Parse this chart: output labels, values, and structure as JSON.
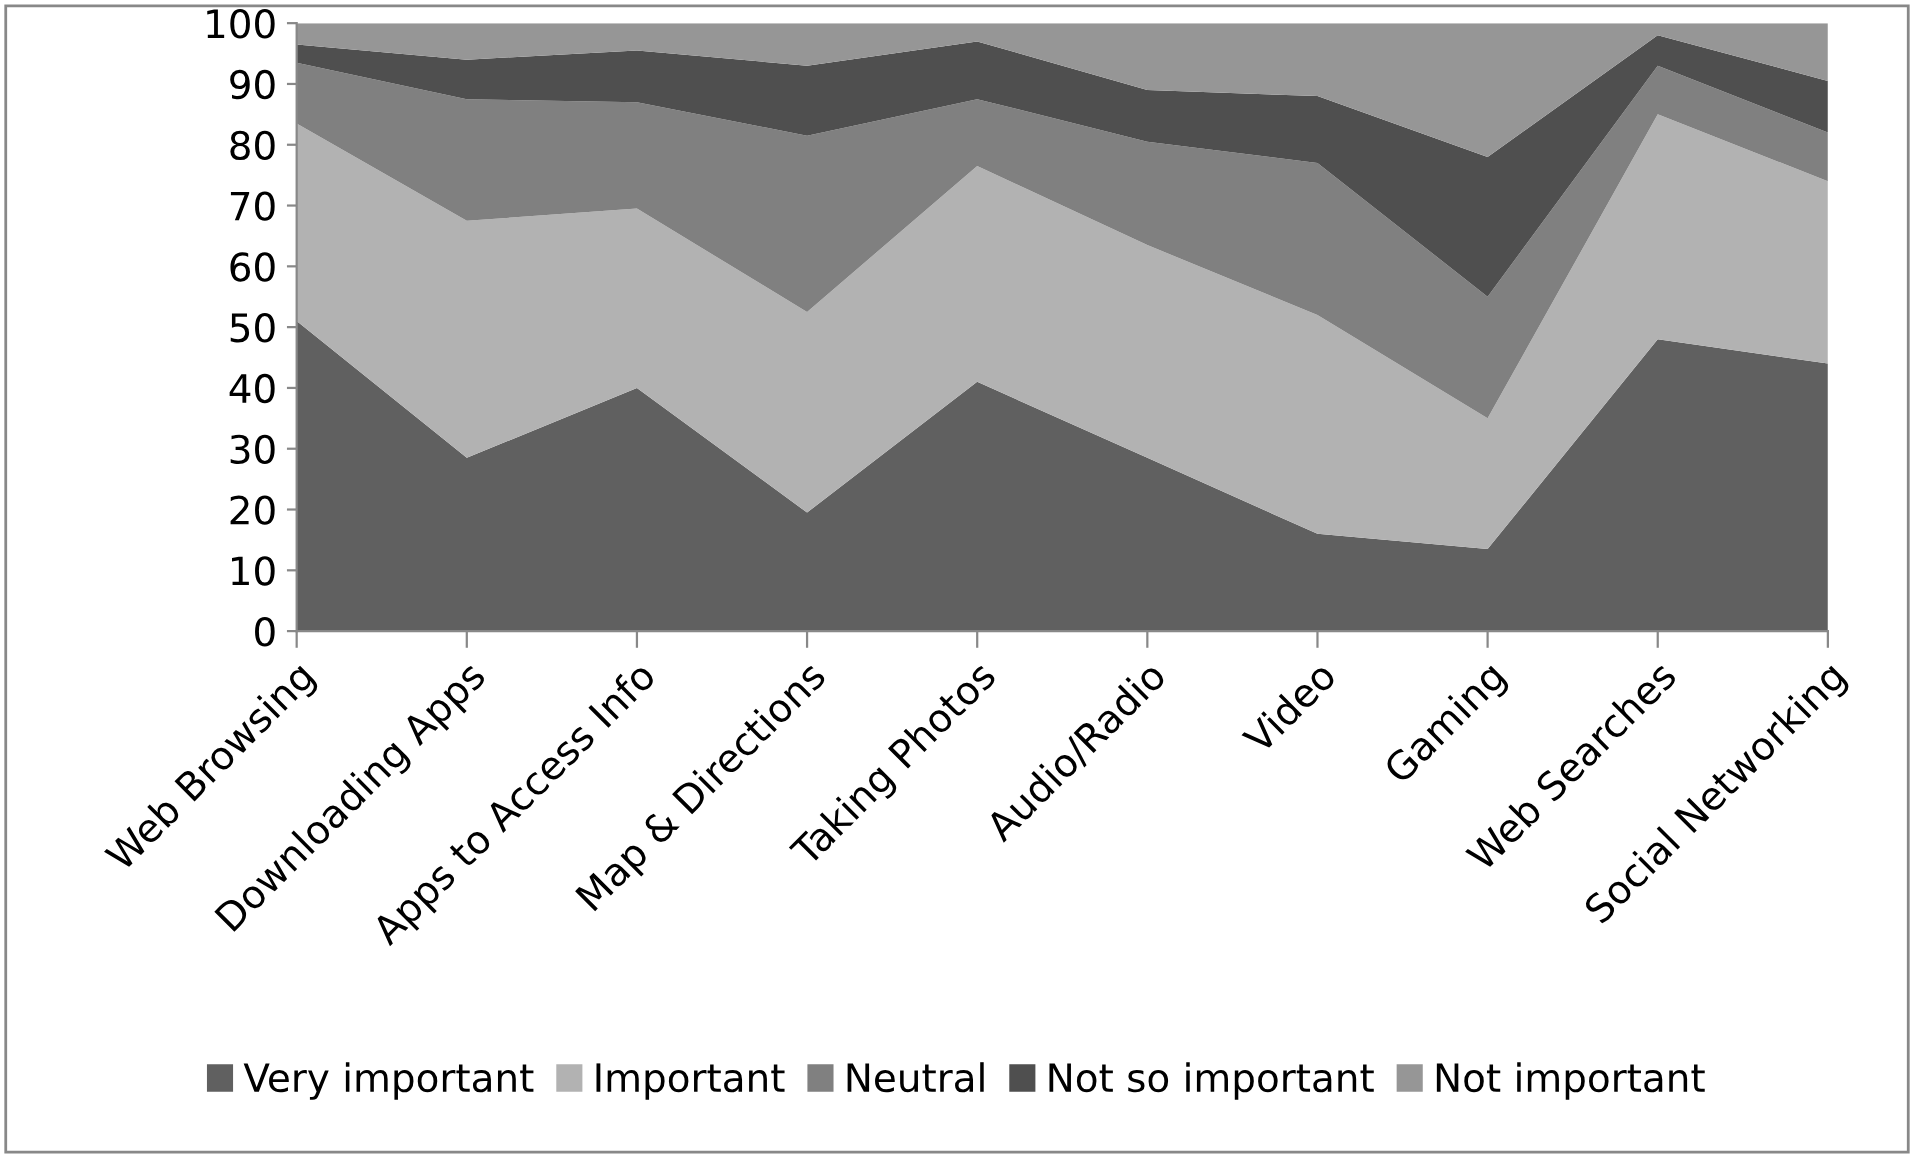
{
  "chart_data": {
    "type": "area",
    "stacked": true,
    "categories": [
      "Web Browsing",
      "Downloading Apps",
      "Apps to Access Info",
      "Map & Directions",
      "Taking Photos",
      "Audio/Radio",
      "Video",
      "Gaming",
      "Web Searches",
      "Social Networking"
    ],
    "series": [
      {
        "name": "Very important",
        "color": "#606060",
        "values": [
          51,
          28.5,
          40,
          19.5,
          41,
          28.5,
          16,
          13.5,
          48,
          44
        ]
      },
      {
        "name": "Important",
        "color": "#b2b2b2",
        "values": [
          32.5,
          39,
          29.5,
          33,
          35.5,
          35,
          36,
          21.5,
          37,
          30
        ]
      },
      {
        "name": "Neutral",
        "color": "#808080",
        "values": [
          10,
          20,
          17.5,
          29,
          11,
          17,
          25,
          20,
          8,
          8
        ]
      },
      {
        "name": "Not so important",
        "color": "#4f4f4f",
        "values": [
          3,
          6.5,
          8.5,
          11.5,
          9.5,
          8.5,
          11,
          23,
          5,
          8.5
        ]
      },
      {
        "name": "Not important",
        "color": "#969696",
        "values": [
          3.5,
          6,
          4.5,
          7,
          3,
          11,
          12,
          22,
          2,
          9.5
        ]
      }
    ],
    "ylim": [
      0,
      100
    ],
    "yticks": [
      0,
      10,
      20,
      30,
      40,
      50,
      60,
      70,
      80,
      90,
      100
    ],
    "grid": false,
    "legend": "bottom"
  }
}
